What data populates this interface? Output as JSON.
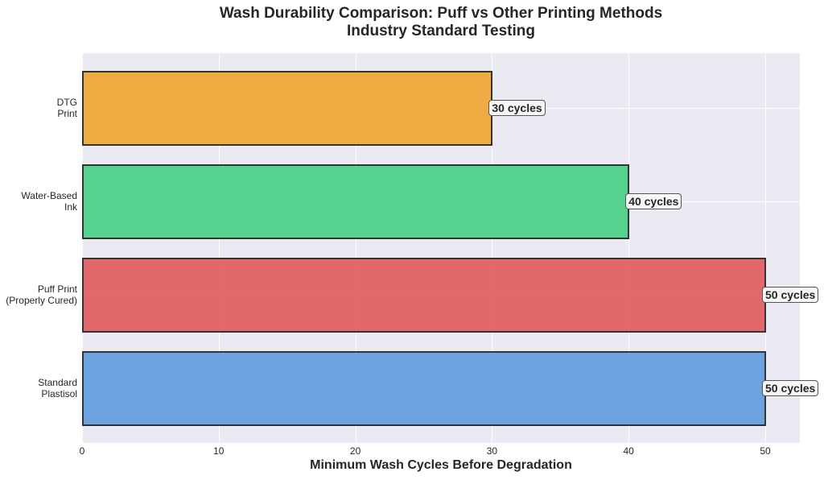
{
  "chart_data": {
    "type": "bar",
    "orientation": "horizontal",
    "title": "Wash Durability Comparison: Puff vs Other Printing Methods",
    "subtitle": "Industry Standard Testing",
    "xlabel": "Minimum Wash Cycles Before Degradation",
    "ylabel": "",
    "xlim": [
      0,
      52.5
    ],
    "xticks": [
      "0",
      "10",
      "20",
      "30",
      "40",
      "50"
    ],
    "grid": true,
    "categories": [
      "DTG\nPrint",
      "Water-Based\nInk",
      "Puff Print\n(Properly Cured)",
      "Standard\nPlastisol"
    ],
    "values": [
      30,
      40,
      50,
      50
    ],
    "colors": [
      "#f0a93a",
      "#4fd18a",
      "#e26264",
      "#659fe0"
    ],
    "value_labels": [
      "30 cycles",
      "40 cycles",
      "50 cycles",
      "50 cycles"
    ]
  }
}
